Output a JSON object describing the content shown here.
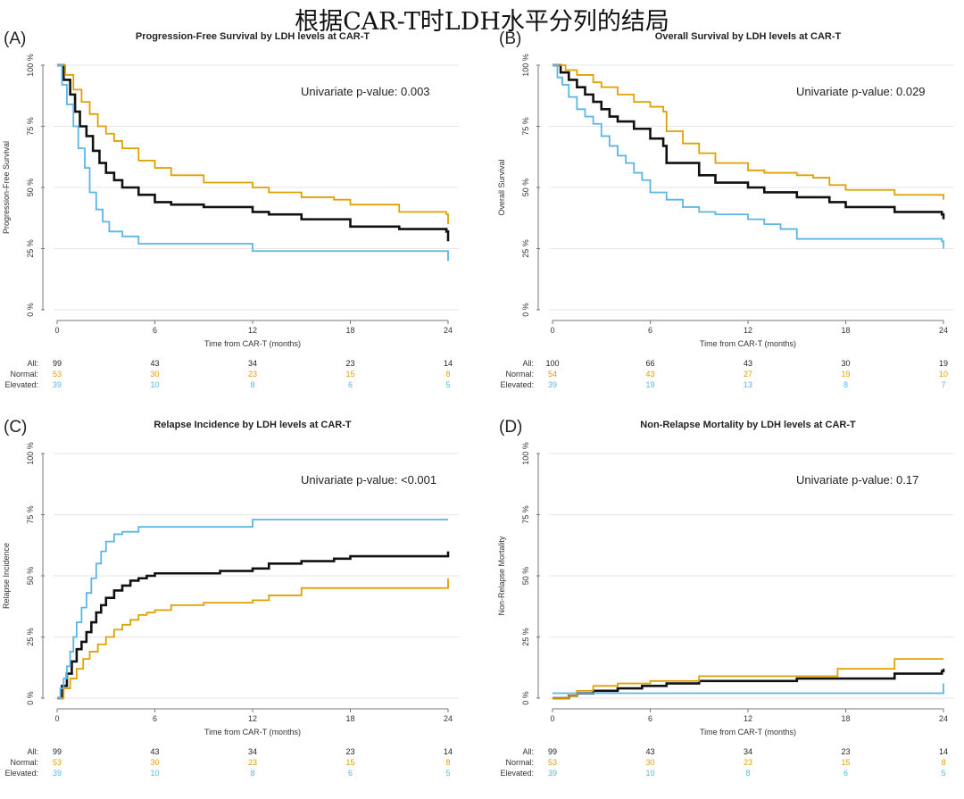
{
  "main_title": "根据CAR-T时LDH水平分列的结局",
  "colors": {
    "all": "#111111",
    "normal": "#E0A100",
    "elevated": "#5BB6E3",
    "grid": "#e6e6e6",
    "axis": "#777777"
  },
  "chart_data": [
    {
      "panel_label": "(A)",
      "type": "line",
      "title": "Progression-Free Survival by LDH levels at CAR-T",
      "xlabel": "Time from CAR-T (months)",
      "ylabel": "Progression-Free Survival",
      "xlim": [
        0,
        24
      ],
      "ylim": [
        0,
        100
      ],
      "xticks": [
        "0",
        "6",
        "12",
        "18",
        "24"
      ],
      "yticks": [
        "0 %",
        "25 %",
        "50 %",
        "75 %",
        "100 %"
      ],
      "pvalue_text": "Univariate p-value: 0.003",
      "series": [
        {
          "name": "All",
          "key": "all",
          "x": [
            0,
            0.4,
            0.8,
            1.1,
            1.4,
            1.8,
            2.2,
            2.6,
            3,
            3.5,
            4,
            5,
            6,
            7,
            9,
            12,
            13,
            15,
            18,
            21,
            23.9,
            24
          ],
          "y": [
            100,
            94,
            88,
            81,
            75,
            71,
            65,
            60,
            56,
            53,
            50,
            47,
            44,
            43,
            42,
            40,
            39,
            37,
            34,
            33,
            32,
            28
          ]
        },
        {
          "name": "Normal",
          "key": "normal",
          "x": [
            0,
            0.5,
            1,
            1.5,
            2,
            2.5,
            3,
            3.5,
            4,
            5,
            6,
            7,
            9,
            12,
            13,
            15,
            17,
            18,
            21,
            23.9,
            24
          ],
          "y": [
            100,
            96,
            90,
            85,
            80,
            75,
            72,
            69,
            66,
            61,
            58,
            55,
            52,
            50,
            48,
            46,
            45,
            43,
            40,
            39,
            35
          ]
        },
        {
          "name": "Elevated",
          "key": "elevated",
          "x": [
            0,
            0.3,
            0.6,
            1,
            1.3,
            1.7,
            2,
            2.4,
            2.8,
            3.2,
            4,
            5,
            12,
            24
          ],
          "y": [
            100,
            92,
            84,
            75,
            66,
            58,
            48,
            41,
            36,
            32,
            30,
            27,
            24,
            20
          ]
        }
      ],
      "risk_table": {
        "times": [
          0,
          6,
          12,
          18,
          24
        ],
        "rows": [
          {
            "label": "All:",
            "key": "all",
            "values": [
              "99",
              "43",
              "34",
              "23",
              "14"
            ]
          },
          {
            "label": "Normal:",
            "key": "normal",
            "values": [
              "53",
              "30",
              "23",
              "15",
              "8"
            ]
          },
          {
            "label": "Elevated:",
            "key": "elevated",
            "values": [
              "39",
              "10",
              "8",
              "6",
              "5"
            ]
          }
        ]
      }
    },
    {
      "panel_label": "(B)",
      "type": "line",
      "title": "Overall Survival by LDH levels at CAR-T",
      "xlabel": "Time from CAR-T (months)",
      "ylabel": "Overall Survival",
      "xlim": [
        0,
        24
      ],
      "ylim": [
        0,
        100
      ],
      "xticks": [
        "0",
        "6",
        "12",
        "18",
        "24"
      ],
      "yticks": [
        "0 %",
        "25 %",
        "50 %",
        "75 %",
        "100 %"
      ],
      "pvalue_text": "Univariate p-value: 0.029",
      "series": [
        {
          "name": "All",
          "key": "all",
          "x": [
            0,
            0.5,
            1,
            1.5,
            2,
            2.5,
            3,
            3.5,
            4,
            5,
            6,
            6.8,
            7,
            9,
            10,
            12,
            13,
            15,
            17,
            18,
            21,
            23.9,
            24
          ],
          "y": [
            100,
            97,
            94,
            91,
            88,
            85,
            82,
            79,
            77,
            74,
            70,
            67,
            60,
            55,
            52,
            50,
            48,
            46,
            44,
            42,
            40,
            39,
            37
          ]
        },
        {
          "name": "Normal",
          "key": "normal",
          "x": [
            0,
            0.8,
            1.5,
            2.5,
            3,
            4,
            5,
            6,
            6.8,
            7,
            8,
            9,
            10,
            12,
            13,
            15,
            16,
            17,
            18,
            21,
            24
          ],
          "y": [
            100,
            98,
            96,
            93,
            91,
            88,
            85,
            83,
            81,
            73,
            68,
            64,
            60,
            57,
            56,
            55,
            54,
            51,
            49,
            47,
            45
          ]
        },
        {
          "name": "Elevated",
          "key": "elevated",
          "x": [
            0,
            0.3,
            0.6,
            1,
            1.5,
            2,
            2.5,
            3,
            3.5,
            4,
            4.5,
            5,
            5.5,
            6,
            7,
            8,
            9,
            10,
            12,
            13,
            14,
            15,
            18,
            23.9,
            24
          ],
          "y": [
            100,
            95,
            92,
            87,
            82,
            79,
            76,
            71,
            67,
            63,
            60,
            56,
            53,
            48,
            45,
            42,
            40,
            39,
            37,
            35,
            33,
            29,
            29,
            28,
            25
          ]
        }
      ],
      "risk_table": {
        "times": [
          0,
          6,
          12,
          18,
          24
        ],
        "rows": [
          {
            "label": "All:",
            "key": "all",
            "values": [
              "100",
              "66",
              "43",
              "30",
              "19"
            ]
          },
          {
            "label": "Normal:",
            "key": "normal",
            "values": [
              "54",
              "43",
              "27",
              "19",
              "10"
            ]
          },
          {
            "label": "Elevated:",
            "key": "elevated",
            "values": [
              "39",
              "19",
              "13",
              "8",
              "7"
            ]
          }
        ]
      }
    },
    {
      "panel_label": "(C)",
      "type": "line",
      "title": "Relapse Incidence by LDH levels at CAR-T",
      "xlabel": "Time from CAR-T (months)",
      "ylabel": "Relapse Incidence",
      "xlim": [
        0,
        24
      ],
      "ylim": [
        0,
        100
      ],
      "xticks": [
        "0",
        "6",
        "12",
        "18",
        "24"
      ],
      "yticks": [
        "0 %",
        "25 %",
        "50 %",
        "75 %",
        "100 %"
      ],
      "pvalue_text": "Univariate p-value: <0.001",
      "series": [
        {
          "name": "All",
          "key": "all",
          "x": [
            0,
            0.3,
            0.6,
            0.9,
            1.2,
            1.5,
            1.8,
            2.1,
            2.4,
            2.7,
            3,
            3.5,
            4,
            4.5,
            5,
            5.5,
            6,
            8,
            10,
            12,
            13,
            15,
            17,
            18,
            21,
            23.9,
            24
          ],
          "y": [
            0,
            5,
            10,
            15,
            20,
            23,
            27,
            31,
            35,
            38,
            41,
            44,
            46,
            48,
            49,
            50,
            51,
            51,
            52,
            53,
            55,
            56,
            57,
            58,
            58,
            58,
            60
          ]
        },
        {
          "name": "Normal",
          "key": "normal",
          "x": [
            0,
            0.4,
            0.8,
            1.2,
            1.6,
            2,
            2.5,
            3,
            3.5,
            4,
            4.5,
            5,
            5.5,
            6,
            7,
            9,
            12,
            13,
            15,
            18,
            21,
            23.9,
            24
          ],
          "y": [
            0,
            4,
            8,
            12,
            16,
            19,
            22,
            25,
            28,
            30,
            32,
            34,
            35,
            36,
            38,
            39,
            40,
            42,
            45,
            45,
            45,
            45,
            49
          ]
        },
        {
          "name": "Elevated",
          "key": "elevated",
          "x": [
            0,
            0.2,
            0.4,
            0.6,
            0.8,
            1,
            1.2,
            1.5,
            1.8,
            2.1,
            2.4,
            2.7,
            3,
            3.5,
            4,
            5,
            6,
            11.9,
            12,
            24
          ],
          "y": [
            0,
            4,
            8,
            13,
            19,
            25,
            31,
            37,
            43,
            49,
            55,
            60,
            64,
            67,
            68,
            70,
            70,
            70,
            73,
            73
          ]
        }
      ],
      "risk_table": {
        "times": [
          0,
          6,
          12,
          18,
          24
        ],
        "rows": [
          {
            "label": "All:",
            "key": "all",
            "values": [
              "99",
              "43",
              "34",
              "23",
              "14"
            ]
          },
          {
            "label": "Normal:",
            "key": "normal",
            "values": [
              "53",
              "30",
              "23",
              "15",
              "8"
            ]
          },
          {
            "label": "Elevated:",
            "key": "elevated",
            "values": [
              "39",
              "10",
              "8",
              "6",
              "5"
            ]
          }
        ]
      }
    },
    {
      "panel_label": "(D)",
      "type": "line",
      "title": "Non-Relapse Mortality by LDH levels at CAR-T",
      "xlabel": "Time from CAR-T (months)",
      "ylabel": "Non-Relapse Mortality",
      "xlim": [
        0,
        24
      ],
      "ylim": [
        0,
        100
      ],
      "xticks": [
        "0",
        "6",
        "12",
        "18",
        "24"
      ],
      "yticks": [
        "0 %",
        "25 %",
        "50 %",
        "75 %",
        "100 %"
      ],
      "pvalue_text": "Univariate p-value: 0.17",
      "series": [
        {
          "name": "All",
          "key": "all",
          "x": [
            0,
            1,
            1.5,
            2.5,
            4,
            5.5,
            7,
            9,
            12,
            15,
            17.5,
            21,
            23.9,
            24
          ],
          "y": [
            0,
            1,
            2,
            3,
            4,
            5,
            6,
            7,
            7,
            8,
            8,
            10,
            11,
            12
          ]
        },
        {
          "name": "Normal",
          "key": "normal",
          "x": [
            0,
            1,
            1.5,
            2.5,
            4,
            6,
            9,
            12,
            15,
            17.5,
            21,
            23.9,
            24
          ],
          "y": [
            0,
            1,
            3,
            5,
            6,
            7,
            9,
            9,
            9,
            12,
            16,
            16,
            16
          ]
        },
        {
          "name": "Elevated",
          "key": "elevated",
          "x": [
            0,
            23.9,
            24
          ],
          "y": [
            2,
            2,
            6
          ]
        }
      ],
      "risk_table": {
        "times": [
          0,
          6,
          12,
          18,
          24
        ],
        "rows": [
          {
            "label": "All:",
            "key": "all",
            "values": [
              "99",
              "43",
              "34",
              "23",
              "14"
            ]
          },
          {
            "label": "Normal:",
            "key": "normal",
            "values": [
              "53",
              "30",
              "23",
              "15",
              "8"
            ]
          },
          {
            "label": "Elevated:",
            "key": "elevated",
            "values": [
              "39",
              "10",
              "8",
              "6",
              "5"
            ]
          }
        ]
      }
    }
  ]
}
